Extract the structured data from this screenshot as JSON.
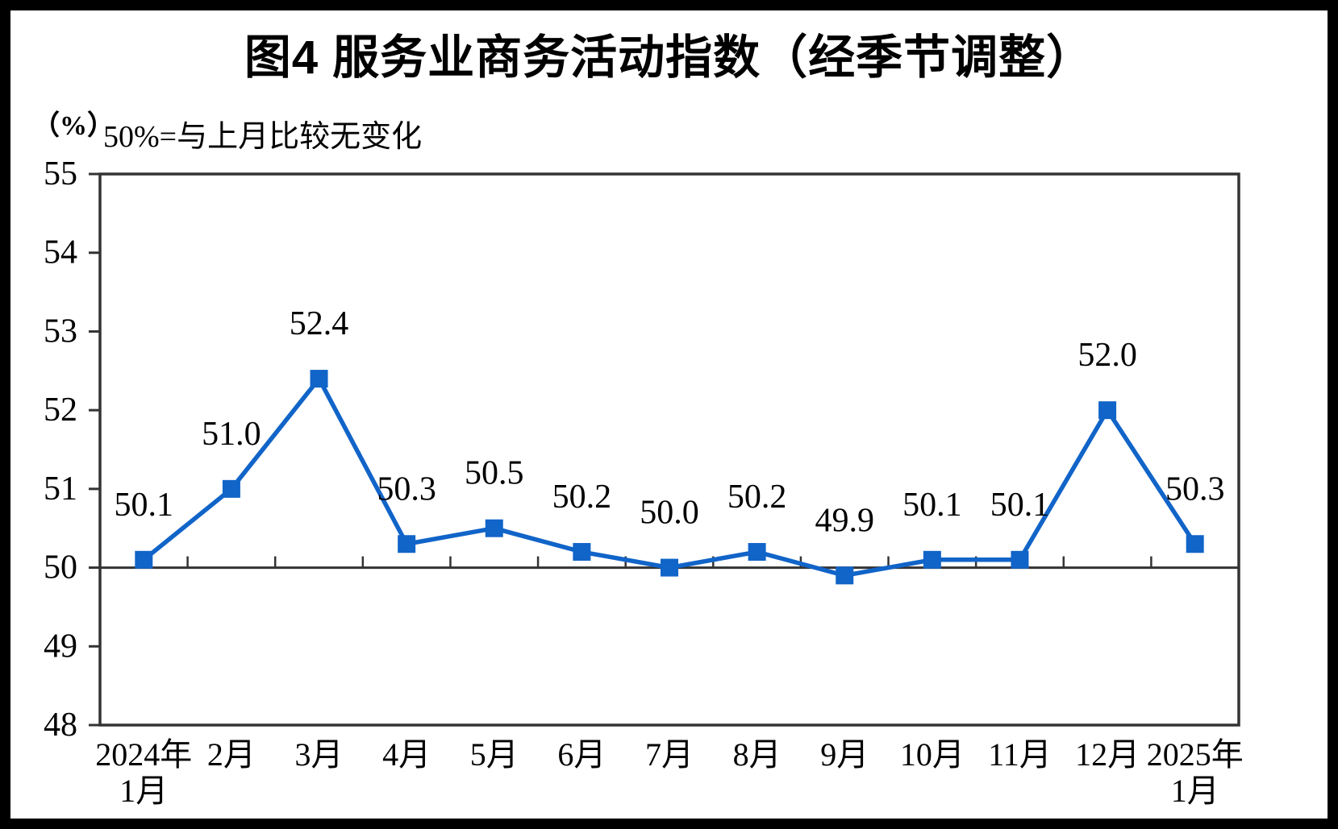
{
  "figure": {
    "title": "图4 服务业商务活动指数（经季节调整）",
    "unit_label": "（%）",
    "subtitle": "50%=与上月比较无变化"
  },
  "chart_data": {
    "type": "line",
    "title": "图4 服务业商务活动指数（经季节调整）",
    "subtitle": "50%=与上月比较无变化",
    "unit": "%",
    "categories": [
      "2024年\n1月",
      "2月",
      "3月",
      "4月",
      "5月",
      "6月",
      "7月",
      "8月",
      "9月",
      "10月",
      "11月",
      "12月",
      "2025年\n1月"
    ],
    "values": [
      50.1,
      51.0,
      52.4,
      50.3,
      50.5,
      50.2,
      50.0,
      50.2,
      49.9,
      50.1,
      50.1,
      52.0,
      50.3
    ],
    "data_labels": [
      "50.1",
      "51.0",
      "52.4",
      "50.3",
      "50.5",
      "50.2",
      "50.0",
      "50.2",
      "49.9",
      "50.1",
      "50.1",
      "52.0",
      "50.3"
    ],
    "xlabel": "",
    "ylabel": "%",
    "ylim": [
      48,
      55
    ],
    "yticks": [
      48,
      49,
      50,
      51,
      52,
      53,
      54,
      55
    ],
    "baseline": 50,
    "grid": false,
    "legend": "none",
    "line_color": "#1164c8",
    "marker": "square",
    "axis_color": "#333333"
  }
}
